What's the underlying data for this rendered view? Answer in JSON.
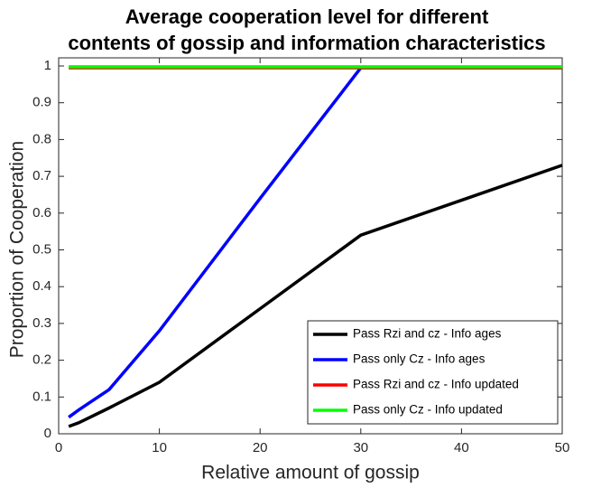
{
  "chart_data": {
    "type": "line",
    "title": [
      "Average cooperation level for different",
      "contents of gossip and information characteristics"
    ],
    "x_label": "Relative amount of gossip",
    "y_label": "Proportion of Cooperation",
    "x": [
      1,
      2,
      5,
      10,
      20,
      30,
      40,
      50
    ],
    "series": [
      {
        "name": "Pass Rzi and cz - Info ages",
        "color": "#000000",
        "values": [
          0.02,
          0.03,
          0.07,
          0.14,
          0.34,
          0.54,
          0.635,
          0.73
        ]
      },
      {
        "name": "Pass only Cz - Info ages",
        "color": "#0000ff",
        "values": [
          0.045,
          0.065,
          0.12,
          0.28,
          0.64,
          0.995,
          0.995,
          0.995
        ]
      },
      {
        "name": "Pass Rzi and cz - Info updated",
        "color": "#ff0000",
        "values": [
          0.995,
          0.995,
          0.995,
          0.995,
          0.995,
          0.995,
          0.995,
          0.995
        ]
      },
      {
        "name": "Pass only Cz - Info updated",
        "color": "#00ff00",
        "values": [
          0.998,
          0.998,
          0.998,
          0.998,
          0.998,
          0.998,
          0.998,
          0.998
        ]
      }
    ],
    "xlim": [
      0,
      50
    ],
    "xticks": [
      0,
      10,
      20,
      30,
      40,
      50
    ],
    "ylim": [
      0,
      1
    ],
    "yticks": [
      0,
      0.1,
      0.2,
      0.3,
      0.4,
      0.5,
      0.6,
      0.7,
      0.8,
      0.9,
      1
    ],
    "legend": "lower right",
    "grid": false
  }
}
